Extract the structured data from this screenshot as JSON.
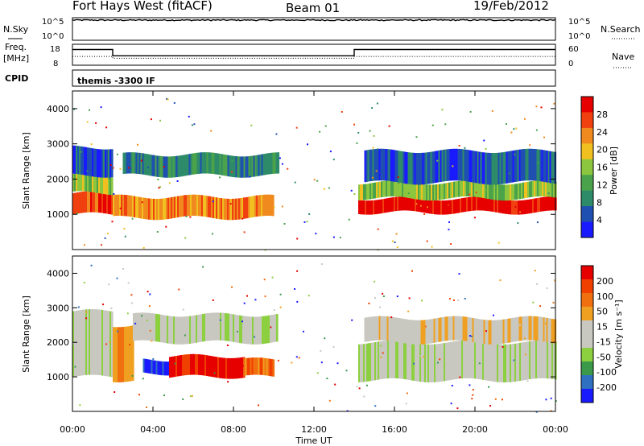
{
  "header": {
    "title": "Fort Hays West (fitACF)",
    "beam": "Beam 01",
    "date": "19/Feb/2012"
  },
  "top_panels": {
    "nsky_label": "N.Sky",
    "nsky_ticks": [
      "10^5",
      "10^0"
    ],
    "nsearch_label": "N.Search",
    "freq_label_1": "Freq.",
    "freq_label_2": "[MHz]",
    "freq_ticks": [
      "18",
      "8"
    ],
    "nave_ticks": [
      "60",
      "0"
    ],
    "nave_label": "Nave",
    "cpid_label": "CPID",
    "cpid_value": "themis -3300 IF"
  },
  "x_axis": {
    "label": "Time UT",
    "ticks": [
      "00:00",
      "04:00",
      "08:00",
      "12:00",
      "16:00",
      "20:00",
      "00:00"
    ]
  },
  "colors": {
    "power": [
      "#1a1aff",
      "#1f4fb0",
      "#2e8b6a",
      "#4aa24a",
      "#8cc63f",
      "#f0c020",
      "#f08a1e",
      "#f04010",
      "#e60000"
    ],
    "velocity": [
      "#1a1aff",
      "#3070c0",
      "#3a9a4a",
      "#8cd040",
      "#c8c8c0",
      "#c8c8c0",
      "#f0a020",
      "#f07010",
      "#f04000",
      "#e60000"
    ]
  },
  "chart_data": [
    {
      "type": "line",
      "title": "N.Sky",
      "xlabel": "Time UT",
      "ylabel": "N.Sky",
      "x_range": [
        "00:00",
        "24:00"
      ],
      "yscale": "log",
      "ylim": [
        1,
        100000
      ],
      "series": [
        {
          "name": "N.Sky",
          "x": [
            0,
            4,
            8,
            12,
            16,
            20,
            24
          ],
          "values": [
            30000,
            30000,
            30000,
            30000,
            30000,
            30000,
            30000
          ]
        }
      ]
    },
    {
      "type": "line",
      "title": "Freq.",
      "ylabel": "Freq. [MHz]",
      "ylim": [
        8,
        18
      ],
      "series": [
        {
          "name": "Freq.",
          "x": [
            0,
            2,
            2,
            14,
            14,
            24
          ],
          "values": [
            15.5,
            15.5,
            12.5,
            12.5,
            15.5,
            15.5
          ]
        },
        {
          "name": "Nave",
          "x": [
            0,
            2,
            2,
            14,
            14,
            24
          ],
          "values": [
            25,
            25,
            20,
            20,
            25,
            25
          ]
        }
      ]
    },
    {
      "type": "heatmap",
      "title": "Power",
      "ylabel": "Slant Range [km]",
      "ylim": [
        0,
        4500
      ],
      "y_ticks": [
        "1000",
        "2000",
        "3000",
        "4000"
      ],
      "colorbar_label": "Power [dB]",
      "colorbar_ticks": [
        "4",
        "8",
        "12",
        "16",
        "20",
        "24",
        "28"
      ],
      "regions": [
        {
          "t0": 0.0,
          "t1": 2.0,
          "r0": 1000,
          "r1": 1600,
          "level": 7
        },
        {
          "t0": 0.0,
          "t1": 2.0,
          "r0": 1600,
          "r1": 2100,
          "level": 4
        },
        {
          "t0": 0.0,
          "t1": 2.0,
          "r0": 2100,
          "r1": 2900,
          "level": 1
        },
        {
          "t0": 2.5,
          "t1": 10.2,
          "r0": 2100,
          "r1": 2700,
          "level": 2
        },
        {
          "t0": 2.0,
          "t1": 10.0,
          "r0": 900,
          "r1": 1500,
          "level": 6
        },
        {
          "t0": 14.2,
          "t1": 24.0,
          "r0": 1050,
          "r1": 1450,
          "level": 8
        },
        {
          "t0": 14.2,
          "t1": 24.0,
          "r0": 1450,
          "r1": 1900,
          "level": 4
        },
        {
          "t0": 14.5,
          "t1": 24.0,
          "r0": 1900,
          "r1": 2800,
          "level": 1
        }
      ]
    },
    {
      "type": "heatmap",
      "title": "Velocity",
      "ylabel": "Slant Range [km]",
      "ylim": [
        0,
        4500
      ],
      "y_ticks": [
        "1000",
        "2000",
        "3000",
        "4000"
      ],
      "colorbar_label": "Velocity [m s⁻¹]",
      "colorbar_ticks": [
        "200",
        "100",
        "50",
        "15",
        "-15",
        "-50",
        "-100",
        "-200"
      ],
      "regions": [
        {
          "t0": 0.0,
          "t1": 2.0,
          "r0": 1000,
          "r1": 2900,
          "level": 4
        },
        {
          "t0": 2.0,
          "t1": 3.0,
          "r0": 900,
          "r1": 2500,
          "level": 6
        },
        {
          "t0": 3.0,
          "t1": 10.2,
          "r0": 2000,
          "r1": 2800,
          "level": 4
        },
        {
          "t0": 3.5,
          "t1": 4.8,
          "r0": 1100,
          "r1": 1500,
          "level": 0
        },
        {
          "t0": 4.8,
          "t1": 8.5,
          "r0": 1000,
          "r1": 1600,
          "level": 9
        },
        {
          "t0": 8.5,
          "t1": 10.0,
          "r0": 1000,
          "r1": 1500,
          "level": 7
        },
        {
          "t0": 14.2,
          "t1": 24.0,
          "r0": 900,
          "r1": 2000,
          "level": 4
        },
        {
          "t0": 14.5,
          "t1": 24.0,
          "r0": 2000,
          "r1": 2700,
          "level": 5
        }
      ]
    }
  ]
}
